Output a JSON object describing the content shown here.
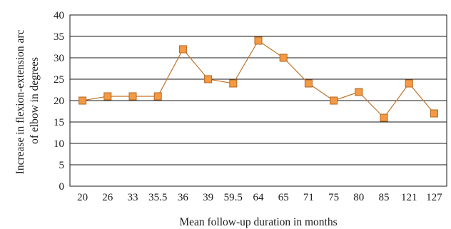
{
  "chart_data": {
    "type": "line",
    "title": "",
    "xlabel": "Mean follow-up duration in months",
    "ylabel_lines": [
      "Increase in flexion-extension arc",
      "of elbow in degrees"
    ],
    "categories": [
      "20",
      "26",
      "33",
      "35.5",
      "36",
      "39",
      "59.5",
      "64",
      "65",
      "71",
      "75",
      "80",
      "85",
      "121",
      "127"
    ],
    "series": [
      {
        "values": [
          20,
          21,
          21,
          21,
          32,
          25,
          24,
          34,
          30,
          24,
          20,
          22,
          16,
          24,
          17
        ],
        "line_color": "#c0732b",
        "marker": "square",
        "marker_fill": "#f49a45",
        "marker_stroke": "#b5651d"
      }
    ],
    "ylim": [
      0,
      40
    ],
    "yticks": [
      "0",
      "5",
      "10",
      "15",
      "20",
      "25",
      "30",
      "35",
      "40"
    ],
    "grid": true
  }
}
